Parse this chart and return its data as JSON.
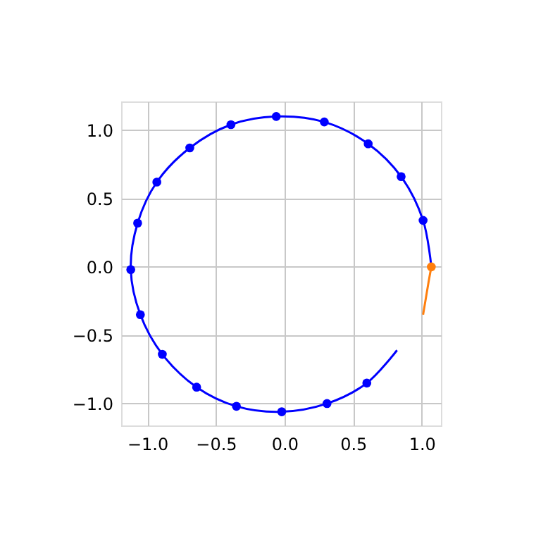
{
  "chart_data": {
    "type": "line",
    "xlim": [
      -1.19,
      1.14
    ],
    "ylim": [
      -1.16,
      1.21
    ],
    "xticks": [
      {
        "value": -1.0,
        "label": "−1.0"
      },
      {
        "value": -0.5,
        "label": "−0.5"
      },
      {
        "value": 0.0,
        "label": "0.0"
      },
      {
        "value": 0.5,
        "label": "0.5"
      },
      {
        "value": 1.0,
        "label": "1.0"
      }
    ],
    "yticks": [
      {
        "value": -1.0,
        "label": "−1.0"
      },
      {
        "value": -0.5,
        "label": "−0.5"
      },
      {
        "value": 0.0,
        "label": "0.0"
      },
      {
        "value": 0.5,
        "label": "0.5"
      },
      {
        "value": 1.0,
        "label": "1.0"
      }
    ],
    "grid": true,
    "series": [
      {
        "color": "#0000ff",
        "marker": "none",
        "x": [
          1.07,
          1.01,
          0.85,
          0.61,
          0.29,
          -0.06,
          -0.39,
          -0.69,
          -0.93,
          -1.07,
          -1.12,
          -1.05,
          -0.89,
          -0.64,
          -0.35,
          -0.02,
          0.31,
          0.6,
          0.82
        ],
        "values": [
          0.0,
          0.34,
          0.66,
          0.9,
          1.06,
          1.1,
          1.04,
          0.87,
          0.62,
          0.32,
          -0.02,
          -0.35,
          -0.64,
          -0.88,
          -1.02,
          -1.06,
          -1.0,
          -0.85,
          -0.61
        ]
      },
      {
        "type": "scatter",
        "color": "#0000ff",
        "marker": "circle",
        "x": [
          1.01,
          0.85,
          0.61,
          0.29,
          -0.06,
          -0.39,
          -0.69,
          -0.93,
          -1.07,
          -1.12,
          -1.05,
          -0.89,
          -0.64,
          -0.35,
          -0.02,
          0.31,
          0.6
        ],
        "values": [
          0.34,
          0.66,
          0.9,
          1.06,
          1.1,
          1.04,
          0.87,
          0.62,
          0.32,
          -0.02,
          -0.35,
          -0.64,
          -0.88,
          -1.02,
          -1.06,
          -1.0,
          -0.85
        ]
      },
      {
        "color": "#ff7f0e",
        "marker": "none",
        "x": [
          1.01,
          1.03,
          1.05,
          1.07
        ],
        "values": [
          -0.35,
          -0.23,
          -0.11,
          0.0
        ]
      },
      {
        "type": "scatter",
        "color": "#ff7f0e",
        "marker": "circle",
        "x": [
          1.07
        ],
        "values": [
          0.0
        ]
      }
    ]
  }
}
